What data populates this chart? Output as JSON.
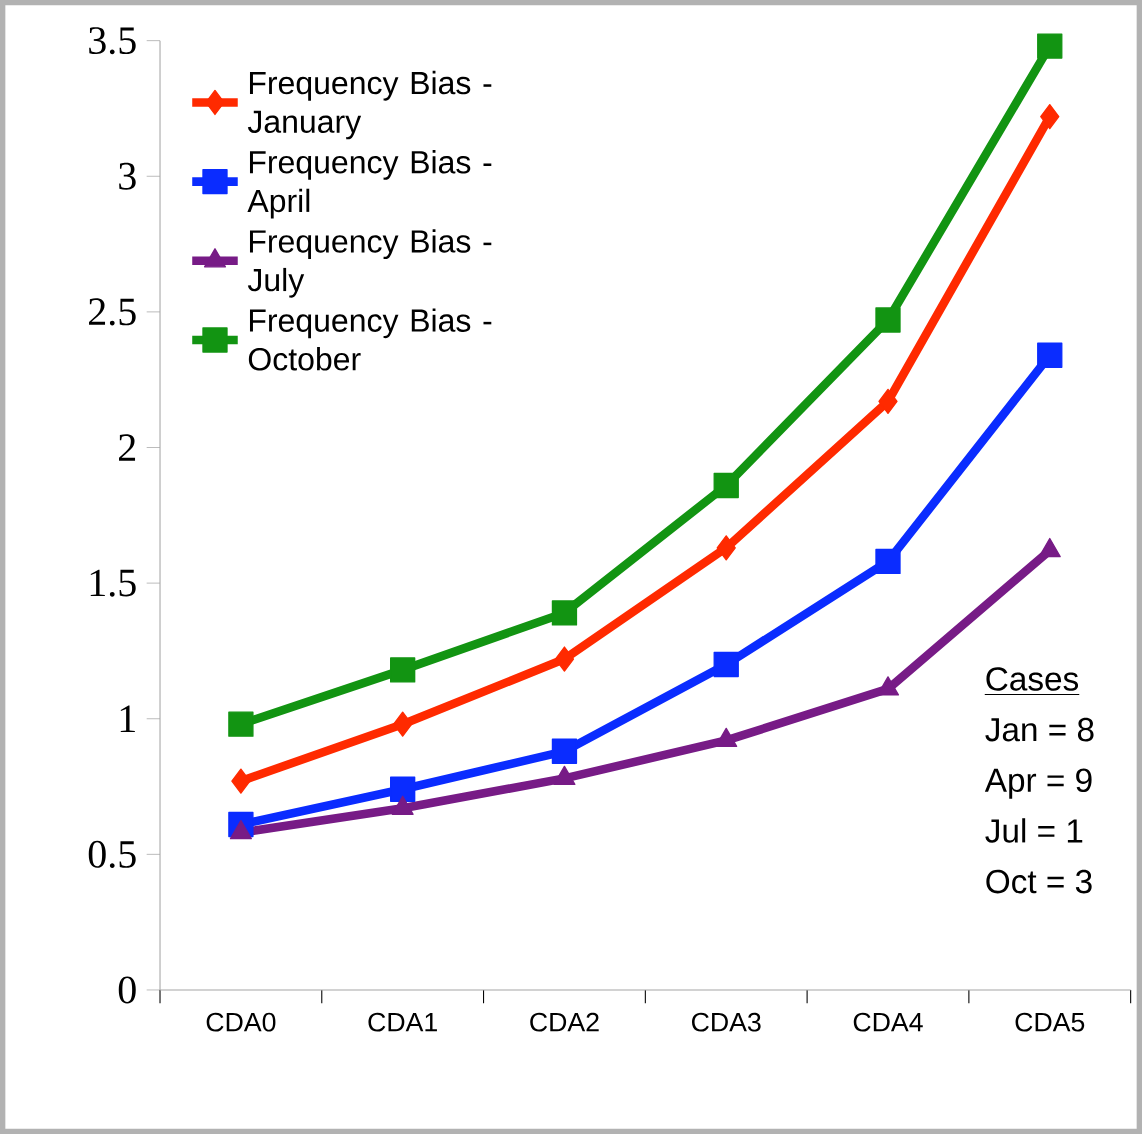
{
  "chart_data": {
    "type": "line",
    "categories": [
      "CDA0",
      "CDA1",
      "CDA2",
      "CDA3",
      "CDA4",
      "CDA5"
    ],
    "series": [
      {
        "name": "Frequency Bias - January",
        "color": "#ff2a00",
        "marker": "diamond",
        "values": [
          0.77,
          0.98,
          1.22,
          1.63,
          2.17,
          3.22
        ]
      },
      {
        "name": "Frequency Bias - April",
        "color": "#0a2cff",
        "marker": "square",
        "values": [
          0.61,
          0.74,
          0.88,
          1.2,
          1.58,
          2.34
        ]
      },
      {
        "name": "Frequency Bias - July",
        "color": "#771b86",
        "marker": "triangle",
        "values": [
          0.58,
          0.67,
          0.78,
          0.92,
          1.11,
          1.62
        ]
      },
      {
        "name": "Frequency Bias - October",
        "color": "#129412",
        "marker": "square",
        "values": [
          0.98,
          1.18,
          1.39,
          1.86,
          2.47,
          3.48
        ]
      }
    ],
    "ylim": [
      0,
      3.5
    ],
    "yticks": [
      0,
      0.5,
      1,
      1.5,
      2,
      2.5,
      3,
      3.5
    ],
    "legend": "top left",
    "grid": false,
    "line_style": "solid",
    "annotations": [
      "Cases",
      "Jan = 8",
      "Apr = 9",
      "Jul = 1",
      "Oct = 3"
    ]
  }
}
